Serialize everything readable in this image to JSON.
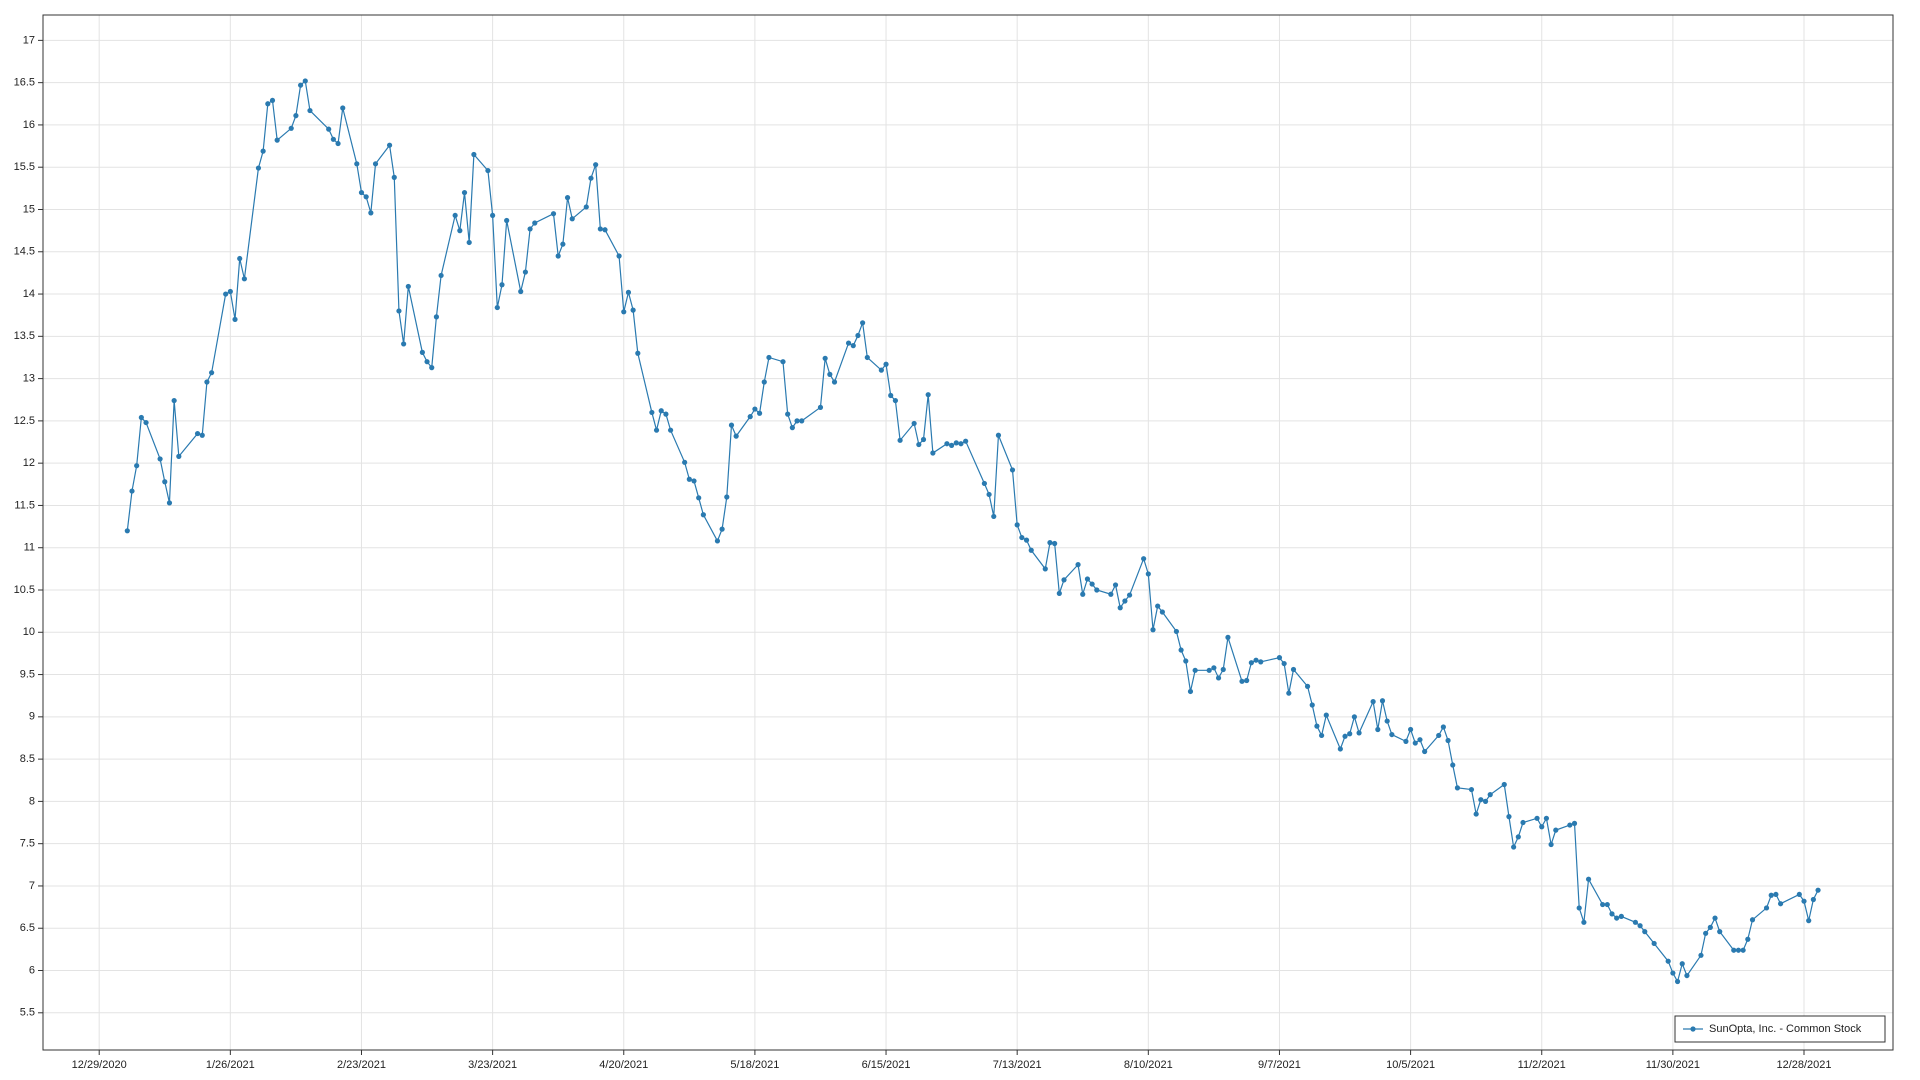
{
  "chart_data": {
    "type": "line",
    "xlim": [
      "12/17/2020",
      "1/16/2022"
    ],
    "xticks": [
      "12/29/2020",
      "1/26/2021",
      "2/23/2021",
      "3/23/2021",
      "4/20/2021",
      "5/18/2021",
      "6/15/2021",
      "7/13/2021",
      "8/10/2021",
      "9/7/2021",
      "10/5/2021",
      "11/2/2021",
      "11/30/2021",
      "12/28/2021"
    ],
    "ylim": [
      5.06,
      17.3
    ],
    "yticks": [
      5.5,
      6,
      6.5,
      7,
      7.5,
      8,
      8.5,
      9,
      9.5,
      10,
      10.5,
      11,
      11.5,
      12,
      12.5,
      13,
      13.5,
      14,
      14.5,
      15,
      15.5,
      16,
      16.5,
      17
    ],
    "grid": true,
    "legend": "lower right",
    "x": [
      "1/4/2021",
      "1/5/2021",
      "1/6/2021",
      "1/7/2021",
      "1/8/2021",
      "1/11/2021",
      "1/12/2021",
      "1/13/2021",
      "1/14/2021",
      "1/15/2021",
      "1/19/2021",
      "1/20/2021",
      "1/21/2021",
      "1/22/2021",
      "1/25/2021",
      "1/26/2021",
      "1/27/2021",
      "1/28/2021",
      "1/29/2021",
      "2/1/2021",
      "2/2/2021",
      "2/3/2021",
      "2/4/2021",
      "2/5/2021",
      "2/8/2021",
      "2/9/2021",
      "2/10/2021",
      "2/11/2021",
      "2/12/2021",
      "2/16/2021",
      "2/17/2021",
      "2/18/2021",
      "2/19/2021",
      "2/22/2021",
      "2/23/2021",
      "2/24/2021",
      "2/25/2021",
      "2/26/2021",
      "3/1/2021",
      "3/2/2021",
      "3/3/2021",
      "3/4/2021",
      "3/5/2021",
      "3/8/2021",
      "3/9/2021",
      "3/10/2021",
      "3/11/2021",
      "3/12/2021",
      "3/15/2021",
      "3/16/2021",
      "3/17/2021",
      "3/18/2021",
      "3/19/2021",
      "3/22/2021",
      "3/23/2021",
      "3/24/2021",
      "3/25/2021",
      "3/26/2021",
      "3/29/2021",
      "3/30/2021",
      "3/31/2021",
      "4/1/2021",
      "4/5/2021",
      "4/6/2021",
      "4/7/2021",
      "4/8/2021",
      "4/9/2021",
      "4/12/2021",
      "4/13/2021",
      "4/14/2021",
      "4/15/2021",
      "4/16/2021",
      "4/19/2021",
      "4/20/2021",
      "4/21/2021",
      "4/22/2021",
      "4/23/2021",
      "4/26/2021",
      "4/27/2021",
      "4/28/2021",
      "4/29/2021",
      "4/30/2021",
      "5/3/2021",
      "5/4/2021",
      "5/5/2021",
      "5/6/2021",
      "5/7/2021",
      "5/10/2021",
      "5/11/2021",
      "5/12/2021",
      "5/13/2021",
      "5/14/2021",
      "5/17/2021",
      "5/18/2021",
      "5/19/2021",
      "5/20/2021",
      "5/21/2021",
      "5/24/2021",
      "5/25/2021",
      "5/26/2021",
      "5/27/2021",
      "5/28/2021",
      "6/1/2021",
      "6/2/2021",
      "6/3/2021",
      "6/4/2021",
      "6/7/2021",
      "6/8/2021",
      "6/9/2021",
      "6/10/2021",
      "6/11/2021",
      "6/14/2021",
      "6/15/2021",
      "6/16/2021",
      "6/17/2021",
      "6/18/2021",
      "6/21/2021",
      "6/22/2021",
      "6/23/2021",
      "6/24/2021",
      "6/25/2021",
      "6/28/2021",
      "6/29/2021",
      "6/30/2021",
      "7/1/2021",
      "7/2/2021",
      "7/6/2021",
      "7/7/2021",
      "7/8/2021",
      "7/9/2021",
      "7/12/2021",
      "7/13/2021",
      "7/14/2021",
      "7/15/2021",
      "7/16/2021",
      "7/19/2021",
      "7/20/2021",
      "7/21/2021",
      "7/22/2021",
      "7/23/2021",
      "7/26/2021",
      "7/27/2021",
      "7/28/2021",
      "7/29/2021",
      "7/30/2021",
      "8/2/2021",
      "8/3/2021",
      "8/4/2021",
      "8/5/2021",
      "8/6/2021",
      "8/9/2021",
      "8/10/2021",
      "8/11/2021",
      "8/12/2021",
      "8/13/2021",
      "8/16/2021",
      "8/17/2021",
      "8/18/2021",
      "8/19/2021",
      "8/20/2021",
      "8/23/2021",
      "8/24/2021",
      "8/25/2021",
      "8/26/2021",
      "8/27/2021",
      "8/30/2021",
      "8/31/2021",
      "9/1/2021",
      "9/2/2021",
      "9/3/2021",
      "9/7/2021",
      "9/8/2021",
      "9/9/2021",
      "9/10/2021",
      "9/13/2021",
      "9/14/2021",
      "9/15/2021",
      "9/16/2021",
      "9/17/2021",
      "9/20/2021",
      "9/21/2021",
      "9/22/2021",
      "9/23/2021",
      "9/24/2021",
      "9/27/2021",
      "9/28/2021",
      "9/29/2021",
      "9/30/2021",
      "10/1/2021",
      "10/4/2021",
      "10/5/2021",
      "10/6/2021",
      "10/7/2021",
      "10/8/2021",
      "10/11/2021",
      "10/12/2021",
      "10/13/2021",
      "10/14/2021",
      "10/15/2021",
      "10/18/2021",
      "10/19/2021",
      "10/20/2021",
      "10/21/2021",
      "10/22/2021",
      "10/25/2021",
      "10/26/2021",
      "10/27/2021",
      "10/28/2021",
      "10/29/2021",
      "11/1/2021",
      "11/2/2021",
      "11/3/2021",
      "11/4/2021",
      "11/5/2021",
      "11/8/2021",
      "11/9/2021",
      "11/10/2021",
      "11/11/2021",
      "11/12/2021",
      "11/15/2021",
      "11/16/2021",
      "11/17/2021",
      "11/18/2021",
      "11/19/2021",
      "11/22/2021",
      "11/23/2021",
      "11/24/2021",
      "11/26/2021",
      "11/29/2021",
      "11/30/2021",
      "12/1/2021",
      "12/2/2021",
      "12/3/2021",
      "12/6/2021",
      "12/7/2021",
      "12/8/2021",
      "12/9/2021",
      "12/10/2021",
      "12/13/2021",
      "12/14/2021",
      "12/15/2021",
      "12/16/2021",
      "12/17/2021",
      "12/20/2021",
      "12/21/2021",
      "12/22/2021",
      "12/23/2021",
      "12/27/2021",
      "12/28/2021",
      "12/29/2021",
      "12/30/2021",
      "12/31/2021"
    ],
    "series": [
      {
        "name": "SunOpta, Inc. - Common Stock",
        "color": "#2a7ab0",
        "values": [
          11.2,
          11.67,
          11.97,
          12.54,
          12.48,
          12.05,
          11.78,
          11.53,
          12.74,
          12.08,
          12.35,
          12.33,
          12.96,
          13.07,
          14.0,
          14.03,
          13.7,
          14.42,
          14.18,
          15.49,
          15.69,
          16.25,
          16.29,
          15.82,
          15.96,
          16.11,
          16.47,
          16.52,
          16.17,
          15.95,
          15.83,
          15.78,
          16.2,
          15.54,
          15.2,
          15.15,
          14.96,
          15.54,
          15.76,
          15.38,
          13.8,
          13.41,
          14.09,
          13.31,
          13.2,
          13.13,
          13.73,
          14.22,
          14.93,
          14.75,
          15.2,
          14.61,
          15.65,
          15.46,
          14.93,
          13.84,
          14.11,
          14.87,
          14.03,
          14.26,
          14.77,
          14.84,
          14.95,
          14.45,
          14.59,
          15.14,
          14.89,
          15.03,
          15.37,
          15.53,
          14.77,
          14.76,
          14.45,
          13.79,
          14.02,
          13.81,
          13.3,
          12.6,
          12.39,
          12.62,
          12.58,
          12.39,
          12.01,
          11.81,
          11.79,
          11.59,
          11.39,
          11.08,
          11.22,
          11.6,
          12.45,
          12.32,
          12.55,
          12.64,
          12.59,
          12.96,
          13.25,
          13.2,
          12.58,
          12.42,
          12.5,
          12.5,
          12.66,
          13.24,
          13.05,
          12.96,
          13.42,
          13.39,
          13.51,
          13.66,
          13.25,
          13.1,
          13.17,
          12.8,
          12.74,
          12.27,
          12.47,
          12.22,
          12.28,
          12.81,
          12.12,
          12.23,
          12.21,
          12.24,
          12.23,
          12.26,
          11.76,
          11.63,
          11.37,
          12.33,
          11.92,
          11.27,
          11.12,
          11.09,
          10.97,
          10.75,
          11.06,
          11.05,
          10.46,
          10.62,
          10.8,
          10.45,
          10.63,
          10.57,
          10.5,
          10.45,
          10.56,
          10.29,
          10.37,
          10.44,
          10.87,
          10.69,
          10.03,
          10.31,
          10.24,
          10.01,
          9.79,
          9.66,
          9.3,
          9.55,
          9.55,
          9.58,
          9.46,
          9.56,
          9.94,
          9.42,
          9.43,
          9.64,
          9.67,
          9.65,
          9.7,
          9.63,
          9.28,
          9.56,
          9.36,
          9.14,
          8.89,
          8.78,
          9.02,
          8.62,
          8.77,
          8.8,
          9.0,
          8.81,
          9.18,
          8.85,
          9.19,
          8.95,
          8.79,
          8.71,
          8.85,
          8.69,
          8.73,
          8.59,
          8.78,
          8.88,
          8.72,
          8.43,
          8.16,
          8.14,
          7.85,
          8.02,
          8.0,
          8.08,
          8.2,
          7.82,
          7.46,
          7.58,
          7.75,
          7.8,
          7.7,
          7.8,
          7.49,
          7.66,
          7.72,
          7.74,
          6.74,
          6.57,
          7.08,
          6.78,
          6.78,
          6.67,
          6.62,
          6.64,
          6.57,
          6.53,
          6.46,
          6.32,
          6.11,
          5.97,
          5.87,
          6.08,
          5.94,
          6.18,
          6.44,
          6.51,
          6.62,
          6.46,
          6.24,
          6.24,
          6.24,
          6.37,
          6.6,
          6.74,
          6.89,
          6.9,
          6.79,
          6.9,
          6.82,
          6.59,
          6.84,
          6.95
        ]
      }
    ]
  }
}
